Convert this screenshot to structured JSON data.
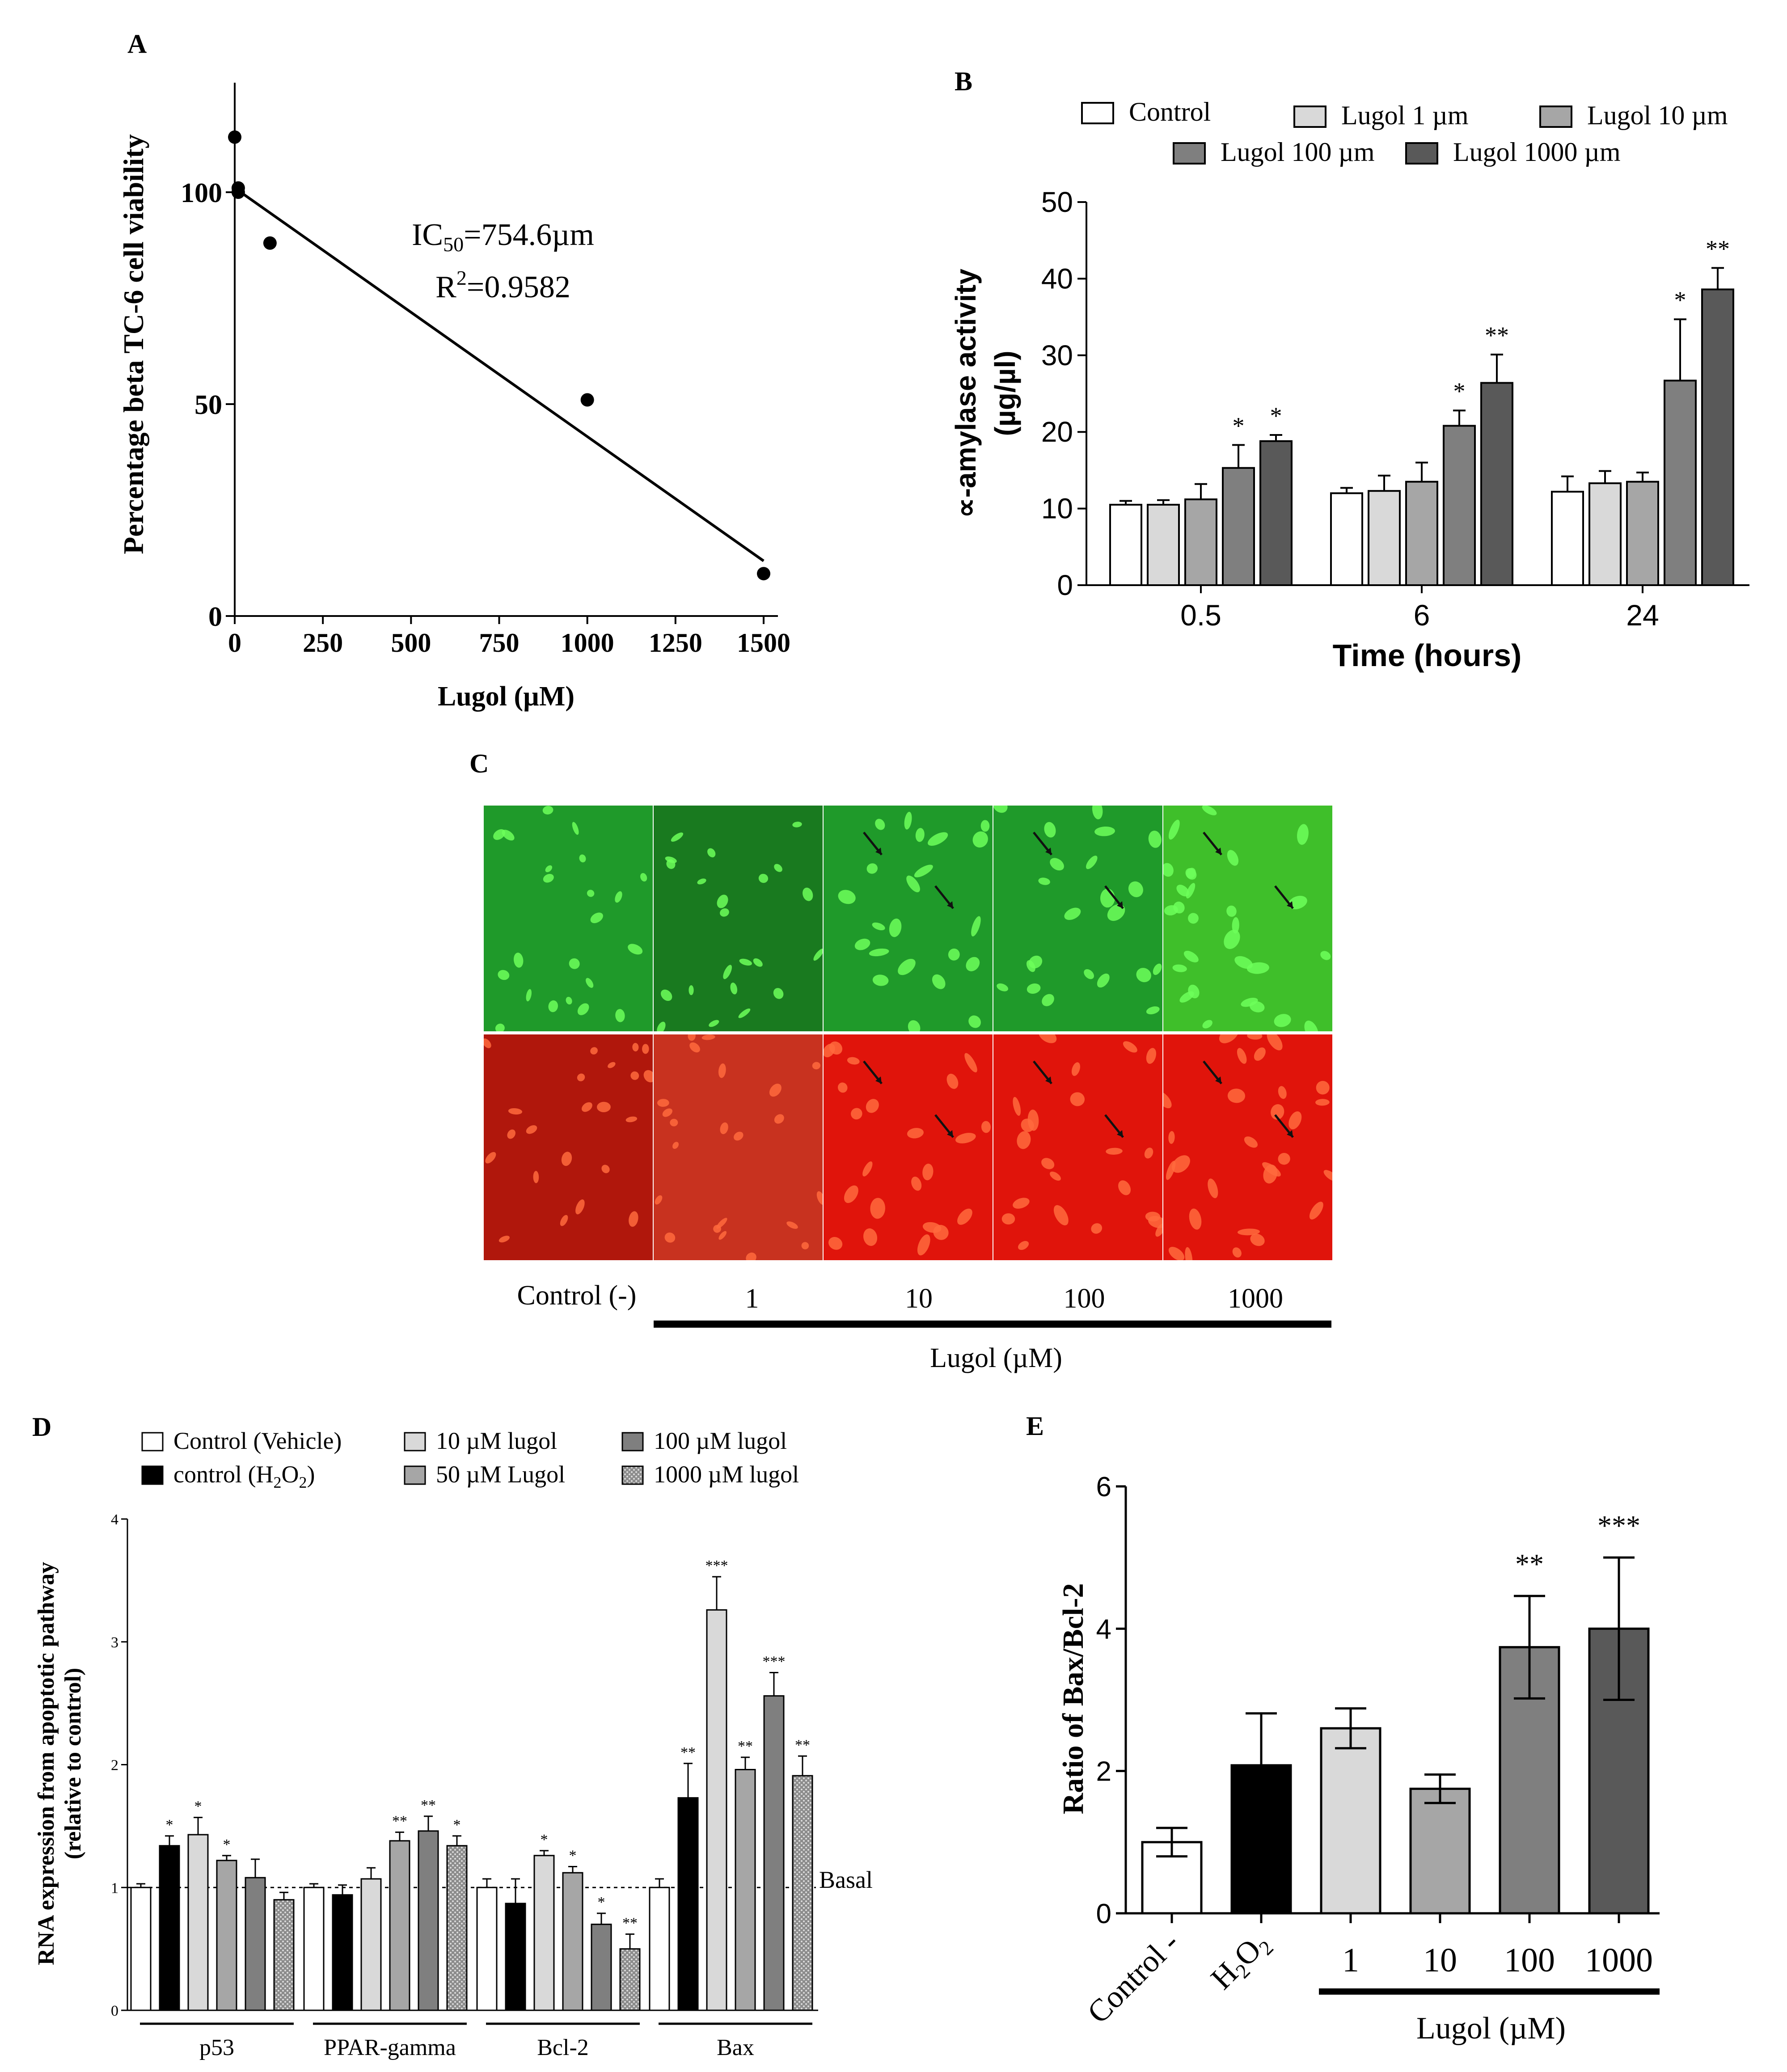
{
  "panels": {
    "A": {
      "letter": "A"
    },
    "B": {
      "letter": "B"
    },
    "C": {
      "letter": "C"
    },
    "D": {
      "letter": "D"
    },
    "E": {
      "letter": "E"
    }
  },
  "panel_c": {
    "row_labels": [
      "Control (-)",
      "1",
      "10",
      "100",
      "1000"
    ],
    "group_label": "Lugol (µM)",
    "green": "#1f9a2a",
    "red": "#e0140b"
  },
  "chart_data": [
    {
      "id": "A",
      "type": "scatter",
      "title": "",
      "xlabel": "Lugol  (µM)",
      "ylabel": "Percentage beta TC-6 cell viability",
      "x": [
        0,
        10,
        10,
        100,
        1000,
        1500
      ],
      "y": [
        113,
        101,
        100,
        88,
        51,
        10
      ],
      "xlim": [
        0,
        1500
      ],
      "ylim": [
        0,
        125
      ],
      "xticks": [
        0,
        250,
        500,
        750,
        1000,
        1250,
        1500
      ],
      "yticks": [
        0,
        50,
        100
      ],
      "fit_line": {
        "x": [
          0,
          1500
        ],
        "y": [
          101,
          13
        ]
      },
      "annotations": [
        "IC50=754.6µm",
        "R2=0.9582"
      ]
    },
    {
      "id": "B",
      "type": "bar",
      "xlabel": "Time (hours)",
      "ylabel": "∝-amylase activity (µg/µl)",
      "ylim": [
        0,
        50
      ],
      "yticks": [
        0,
        10,
        20,
        30,
        40,
        50
      ],
      "categories": [
        "0.5",
        "6",
        "24"
      ],
      "series": [
        {
          "name": "Control",
          "color": "#ffffff",
          "values": [
            10.5,
            12.0,
            12.2
          ],
          "errors": [
            0.5,
            0.7,
            2.0
          ],
          "sig": [
            "",
            "",
            ""
          ]
        },
        {
          "name": "Lugol 1 µm",
          "color": "#d9d9d9",
          "values": [
            10.5,
            12.3,
            13.3
          ],
          "errors": [
            0.6,
            2.0,
            1.6
          ],
          "sig": [
            "",
            "",
            ""
          ]
        },
        {
          "name": "Lugol 10 µm",
          "color": "#a6a6a6",
          "values": [
            11.2,
            13.5,
            13.5
          ],
          "errors": [
            2.0,
            2.5,
            1.2
          ],
          "sig": [
            "",
            "",
            ""
          ]
        },
        {
          "name": "Lugol 100 µm",
          "color": "#7f7f7f",
          "values": [
            15.3,
            20.8,
            26.7
          ],
          "errors": [
            3.0,
            2.0,
            8.0
          ],
          "sig": [
            "*",
            "*",
            "*"
          ]
        },
        {
          "name": "Lugol 1000 µm",
          "color": "#595959",
          "values": [
            18.8,
            26.4,
            38.6
          ],
          "errors": [
            0.8,
            3.7,
            2.8
          ],
          "sig": [
            "*",
            "**",
            "**"
          ]
        }
      ]
    },
    {
      "id": "D",
      "type": "bar",
      "xlabel": "",
      "ylabel": "RNA expression from apoptotic pathway (relative to control)",
      "ylim": [
        0,
        4
      ],
      "yticks": [
        0,
        1,
        2,
        3,
        4
      ],
      "categories": [
        "p53",
        "PPAR-gamma",
        "Bcl-2",
        "Bax"
      ],
      "reference_line": {
        "value": 1,
        "label": "Basal"
      },
      "series": [
        {
          "name": "Control (Vehicle)",
          "color": "#ffffff",
          "values": [
            1.0,
            1.0,
            1.0,
            1.0
          ],
          "errors": [
            0.03,
            0.03,
            0.07,
            0.07
          ],
          "sig": [
            "",
            "",
            "",
            ""
          ]
        },
        {
          "name": "control (H2O2)",
          "color": "#000000",
          "values": [
            1.34,
            0.94,
            0.87,
            1.73
          ],
          "errors": [
            0.08,
            0.08,
            0.2,
            0.28
          ],
          "sig": [
            "*",
            "",
            "",
            "**"
          ]
        },
        {
          "name": "10 µM lugol",
          "color": "#d9d9d9",
          "values": [
            1.43,
            1.07,
            1.26,
            3.26
          ],
          "errors": [
            0.14,
            0.09,
            0.04,
            0.27
          ],
          "sig": [
            "*",
            "",
            "*",
            "***"
          ]
        },
        {
          "name": "50 µM Lugol",
          "color": "#a6a6a6",
          "values": [
            1.22,
            1.38,
            1.12,
            1.96
          ],
          "errors": [
            0.04,
            0.07,
            0.05,
            0.1
          ],
          "sig": [
            "*",
            "**",
            "*",
            "**"
          ]
        },
        {
          "name": "100 µM lugol",
          "color": "#7f7f7f",
          "values": [
            1.08,
            1.46,
            0.7,
            2.56
          ],
          "errors": [
            0.15,
            0.12,
            0.09,
            0.19
          ],
          "sig": [
            "",
            "**",
            "*",
            "***"
          ]
        },
        {
          "name": "1000 µM lugol",
          "color": "#8c8c8c",
          "pattern": true,
          "values": [
            0.9,
            1.34,
            0.5,
            1.91
          ],
          "errors": [
            0.06,
            0.08,
            0.12,
            0.16
          ],
          "sig": [
            "",
            "*",
            "**",
            "**"
          ]
        }
      ]
    },
    {
      "id": "E",
      "type": "bar",
      "xlabel": "Lugol (µM)",
      "ylabel": "Ratio of Bax/Bcl-2",
      "ylim": [
        0,
        6
      ],
      "yticks": [
        0,
        2,
        4,
        6
      ],
      "categories": [
        "Control -",
        "H2O2",
        "1",
        "10",
        "100",
        "1000"
      ],
      "values": [
        1.0,
        2.08,
        2.6,
        1.75,
        3.74,
        4.0
      ],
      "errors": [
        0.2,
        0.73,
        0.28,
        0.2,
        0.72,
        1.0
      ],
      "colors": [
        "#ffffff",
        "#000000",
        "#d9d9d9",
        "#a6a6a6",
        "#7f7f7f",
        "#595959"
      ],
      "sig": [
        "",
        "",
        "",
        "",
        "**",
        "***"
      ]
    }
  ]
}
